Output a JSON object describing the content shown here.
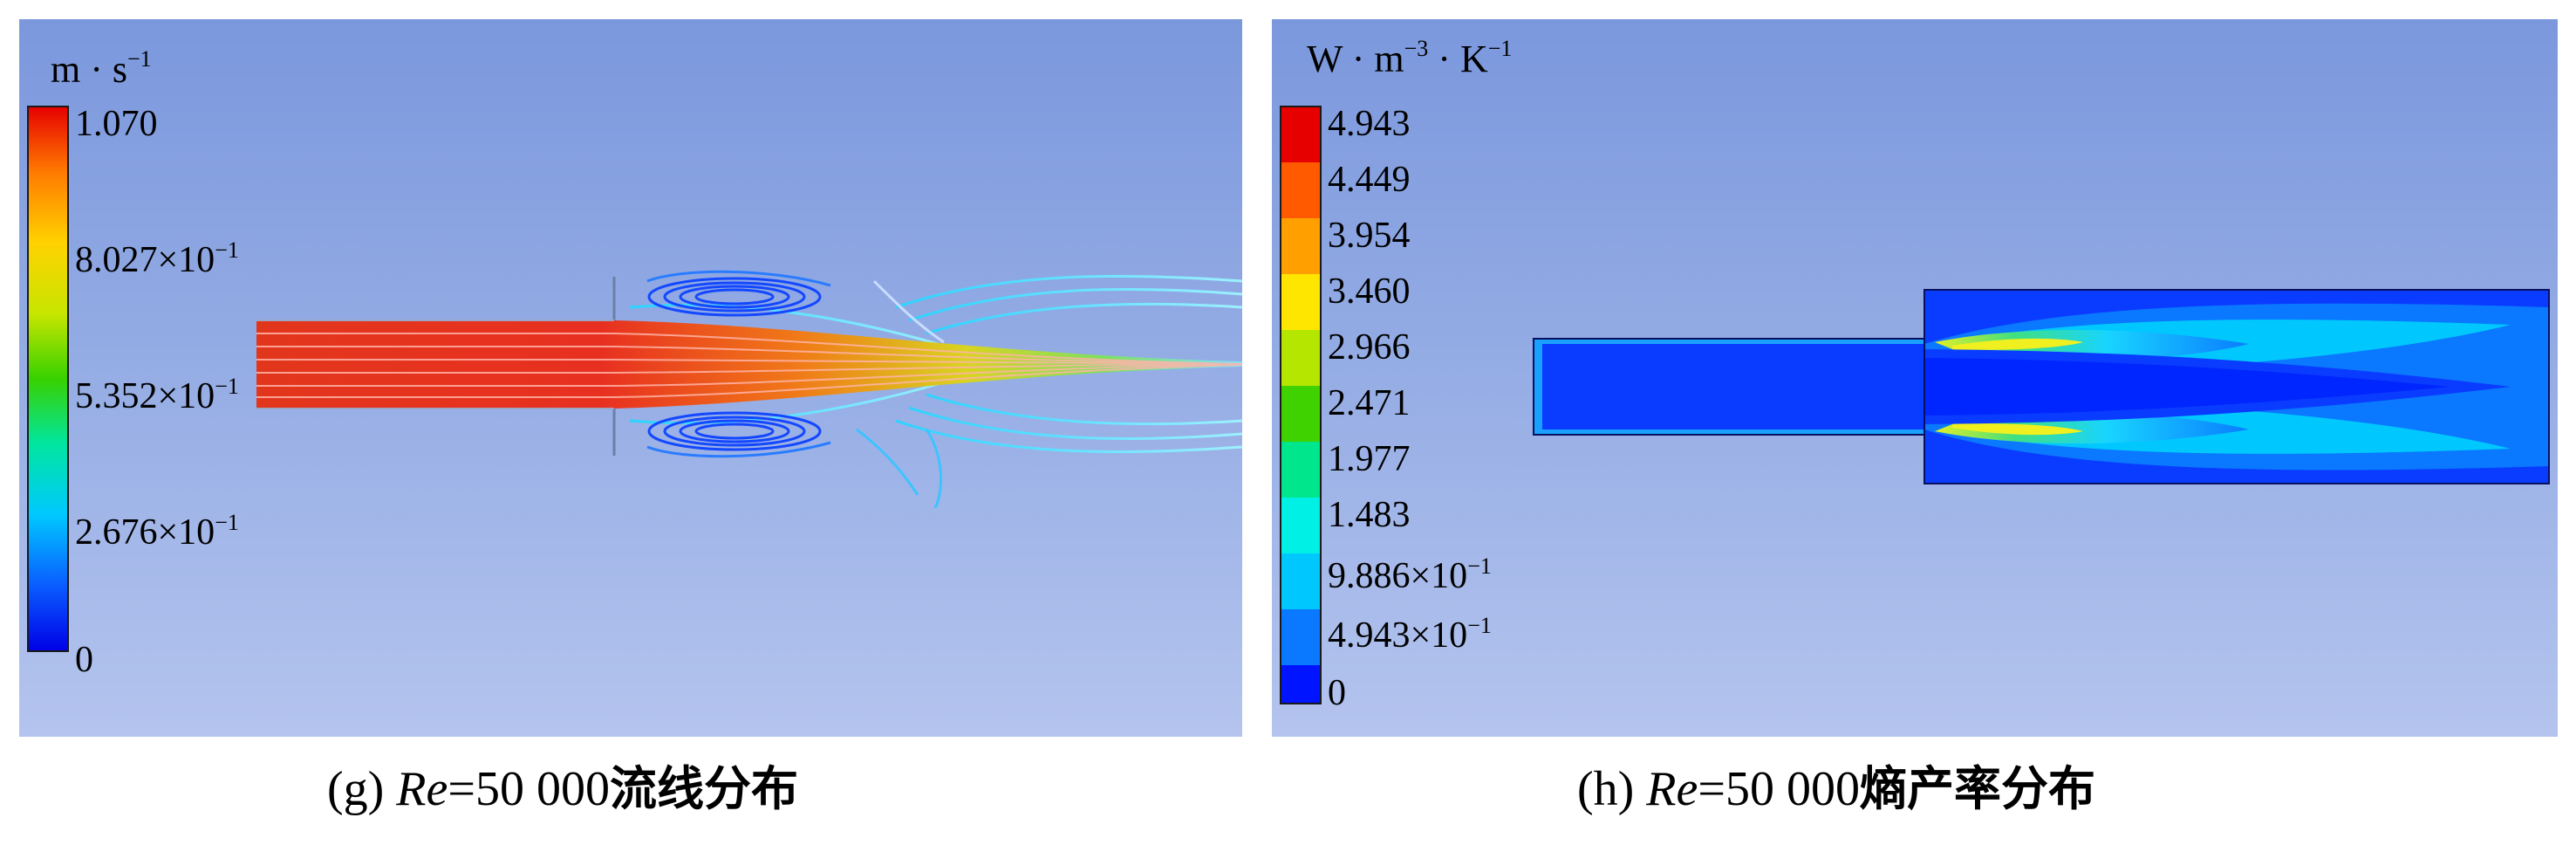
{
  "panel_g": {
    "unit_base_1": "m",
    "unit_dot": "·",
    "unit_base_2": "s",
    "unit_exp": "−1",
    "ticks": [
      {
        "mantissa": "1.070",
        "exp": ""
      },
      {
        "mantissa": "8.027×10",
        "exp": "−1"
      },
      {
        "mantissa": "5.352×10",
        "exp": "−1"
      },
      {
        "mantissa": "2.676×10",
        "exp": "−1"
      },
      {
        "mantissa": "0",
        "exp": ""
      }
    ],
    "caption": {
      "prefix": "(g) ",
      "var": "Re",
      "value": "=50 000",
      "text": "流线分布"
    }
  },
  "panel_h": {
    "unit_w": "W",
    "unit_dot": "·",
    "unit_m": "m",
    "unit_m_exp": "−3",
    "unit_k": "K",
    "unit_k_exp": "−1",
    "ticks": [
      {
        "mantissa": "4.943",
        "exp": ""
      },
      {
        "mantissa": "4.449",
        "exp": ""
      },
      {
        "mantissa": "3.954",
        "exp": ""
      },
      {
        "mantissa": "3.460",
        "exp": ""
      },
      {
        "mantissa": "2.966",
        "exp": ""
      },
      {
        "mantissa": "2.471",
        "exp": ""
      },
      {
        "mantissa": "1.977",
        "exp": ""
      },
      {
        "mantissa": "1.483",
        "exp": ""
      },
      {
        "mantissa": "9.886×10",
        "exp": "−1"
      },
      {
        "mantissa": "4.943×10",
        "exp": "−1"
      },
      {
        "mantissa": "0",
        "exp": ""
      }
    ],
    "caption": {
      "prefix": "(h) ",
      "var": "Re",
      "value": "=50 000",
      "text": "熵产率分布"
    }
  },
  "colors": {
    "background_top": "#7b98dd",
    "background_bottom": "#b4c4ee",
    "colormap": [
      "#0000e6",
      "#0a5cff",
      "#00c8ff",
      "#00e6a0",
      "#38d100",
      "#c8e600",
      "#ffd200",
      "#ff7a00",
      "#e60000"
    ]
  }
}
